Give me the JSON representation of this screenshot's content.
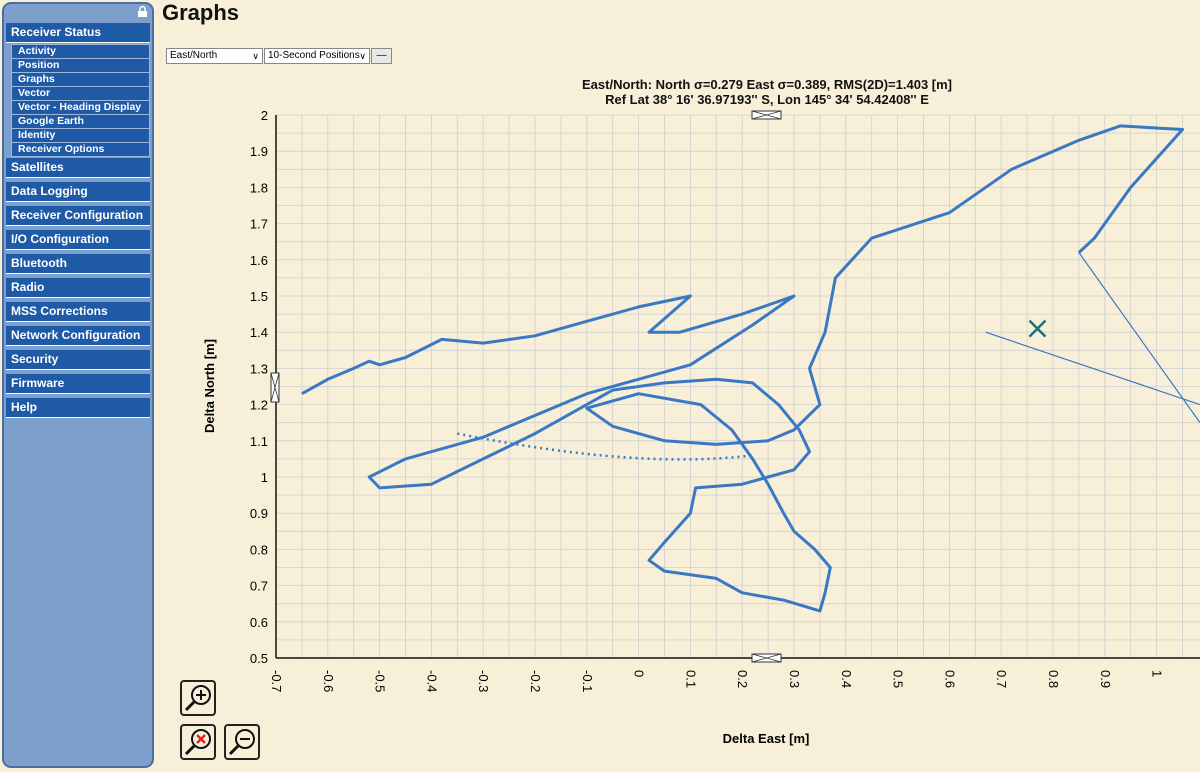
{
  "page_title": "Graphs",
  "sidebar": {
    "groups": [
      {
        "label": "Receiver Status",
        "items": [
          "Activity",
          "Position",
          "Graphs",
          "Vector",
          "Vector - Heading Display",
          "Google Earth",
          "Identity",
          "Receiver Options"
        ]
      },
      {
        "label": "Satellites"
      },
      {
        "label": "Data Logging"
      },
      {
        "label": "Receiver Configuration"
      },
      {
        "label": "I/O Configuration"
      },
      {
        "label": "Bluetooth"
      },
      {
        "label": "Radio"
      },
      {
        "label": "MSS Corrections"
      },
      {
        "label": "Network Configuration"
      },
      {
        "label": "Security"
      },
      {
        "label": "Firmware"
      },
      {
        "label": "Help"
      }
    ]
  },
  "controls": {
    "plot_select": "East/North",
    "interval_select": "10-Second Positions",
    "minus_button": "—"
  },
  "chart": {
    "title_line1": "East/North: North σ=0.279  East σ=0.389, RMS(2D)=1.403 [m]",
    "title_line2": "Ref Lat 38° 16' 36.97193'' S, Lon 145° 34' 54.42408'' E",
    "xlabel": "Delta East [m]",
    "ylabel": "Delta North [m]",
    "line_color": "#3a78c4"
  },
  "chart_data": {
    "type": "line",
    "xlim": [
      -0.7,
      1.0
    ],
    "ylim": [
      0.5,
      2.0
    ],
    "x_ticks": [
      "-0.7",
      "-0.6",
      "-0.5",
      "-0.4",
      "-0.3",
      "-0.2",
      "-0.1",
      "0",
      "0.1",
      "0.2",
      "0.3",
      "0.4",
      "0.5",
      "0.6",
      "0.7",
      "0.8",
      "0.9",
      "1"
    ],
    "y_ticks": [
      "0.5",
      "0.6",
      "0.7",
      "0.8",
      "0.9",
      "1",
      "1.1",
      "1.2",
      "1.3",
      "1.4",
      "1.5",
      "1.6",
      "1.7",
      "1.8",
      "1.9",
      "2"
    ],
    "grid": true,
    "track": [
      [
        -0.65,
        1.23
      ],
      [
        -0.6,
        1.27
      ],
      [
        -0.55,
        1.3
      ],
      [
        -0.52,
        1.32
      ],
      [
        -0.5,
        1.31
      ],
      [
        -0.45,
        1.33
      ],
      [
        -0.38,
        1.38
      ],
      [
        -0.3,
        1.37
      ],
      [
        -0.2,
        1.39
      ],
      [
        -0.1,
        1.43
      ],
      [
        0.0,
        1.47
      ],
      [
        0.1,
        1.5
      ],
      [
        0.02,
        1.4
      ],
      [
        0.08,
        1.4
      ],
      [
        0.2,
        1.45
      ],
      [
        0.3,
        1.5
      ],
      [
        0.22,
        1.42
      ],
      [
        0.1,
        1.31
      ],
      [
        -0.1,
        1.23
      ],
      [
        -0.3,
        1.11
      ],
      [
        -0.45,
        1.05
      ],
      [
        -0.52,
        1.0
      ],
      [
        -0.5,
        0.97
      ],
      [
        -0.4,
        0.98
      ],
      [
        -0.3,
        1.05
      ],
      [
        -0.2,
        1.12
      ],
      [
        -0.1,
        1.2
      ],
      [
        -0.05,
        1.24
      ],
      [
        0.05,
        1.26
      ],
      [
        0.15,
        1.27
      ],
      [
        0.22,
        1.26
      ],
      [
        0.27,
        1.2
      ],
      [
        0.31,
        1.13
      ],
      [
        0.33,
        1.07
      ],
      [
        0.3,
        1.02
      ],
      [
        0.25,
        1.0
      ],
      [
        0.2,
        0.98
      ],
      [
        0.11,
        0.97
      ],
      [
        0.1,
        0.9
      ],
      [
        0.05,
        0.82
      ],
      [
        0.02,
        0.77
      ],
      [
        0.05,
        0.74
      ],
      [
        0.15,
        0.72
      ],
      [
        0.2,
        0.68
      ],
      [
        0.28,
        0.66
      ],
      [
        0.35,
        0.63
      ],
      [
        0.36,
        0.68
      ],
      [
        0.37,
        0.75
      ],
      [
        0.34,
        0.8
      ],
      [
        0.3,
        0.85
      ],
      [
        0.28,
        0.9
      ],
      [
        0.25,
        0.98
      ],
      [
        0.22,
        1.05
      ],
      [
        0.18,
        1.13
      ],
      [
        0.12,
        1.2
      ],
      [
        0.0,
        1.23
      ],
      [
        -0.1,
        1.19
      ],
      [
        -0.05,
        1.14
      ],
      [
        0.05,
        1.1
      ],
      [
        0.15,
        1.09
      ],
      [
        0.25,
        1.1
      ],
      [
        0.3,
        1.13
      ],
      [
        0.35,
        1.2
      ],
      [
        0.33,
        1.3
      ],
      [
        0.36,
        1.4
      ],
      [
        0.38,
        1.55
      ],
      [
        0.45,
        1.66
      ],
      [
        0.6,
        1.73
      ],
      [
        0.72,
        1.85
      ],
      [
        0.85,
        1.93
      ],
      [
        0.93,
        1.97
      ],
      [
        1.05,
        1.96
      ],
      [
        0.95,
        1.8
      ],
      [
        0.88,
        1.66
      ],
      [
        0.85,
        1.62
      ]
    ],
    "marker": {
      "x": 0.77,
      "y": 1.41,
      "shape": "x"
    }
  },
  "zoom": {
    "zoom_in": "zoom-in",
    "zoom_reset": "zoom-reset",
    "zoom_out": "zoom-out"
  }
}
